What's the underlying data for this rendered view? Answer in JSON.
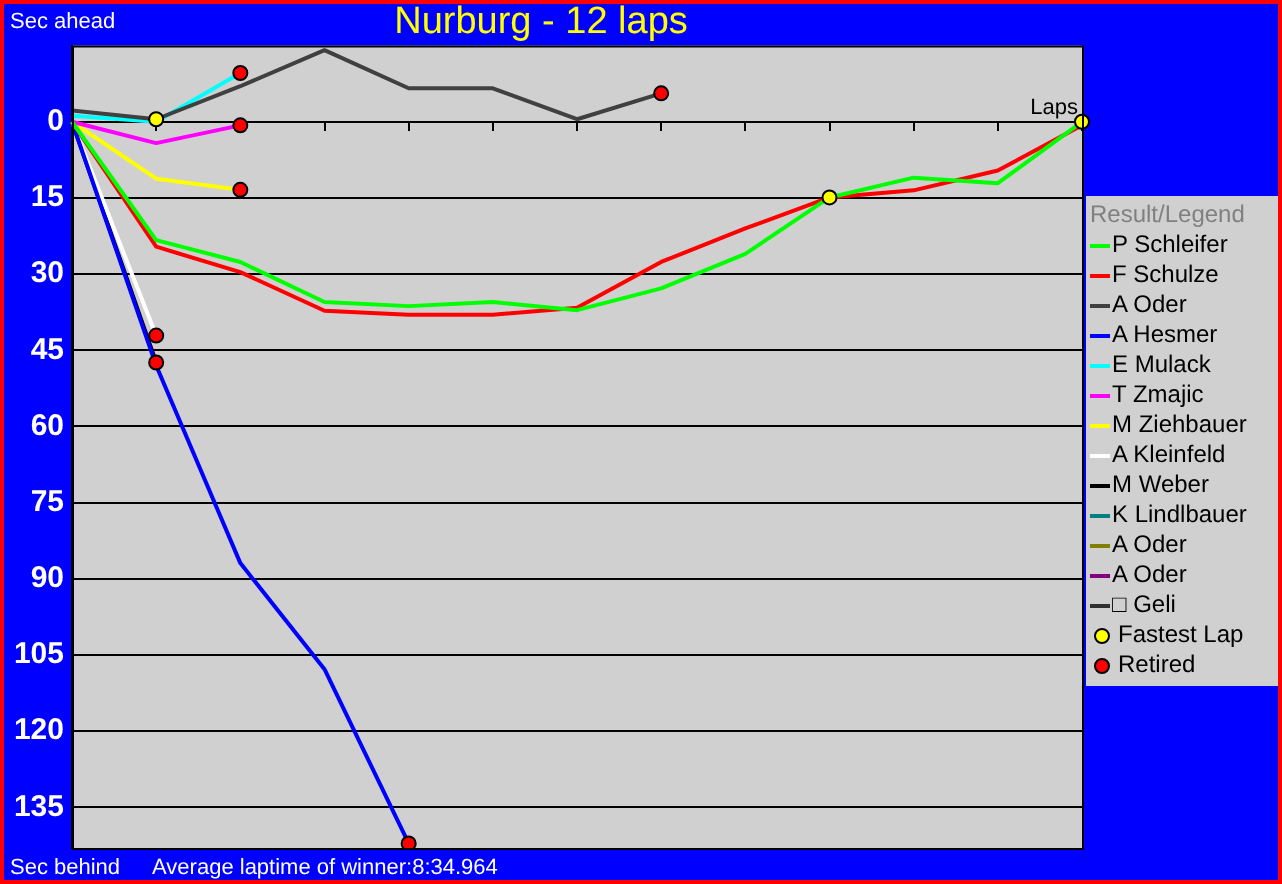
{
  "chart_data": {
    "type": "line",
    "title": "Nurburg - 12 laps",
    "xlabel": "Laps",
    "ylabel": "Sec ahead",
    "legend_title": "Result/Legend",
    "annotations": [
      "Sec behind",
      "Average laptime of winner:8:34.964"
    ],
    "categories": [
      null,
      null,
      null,
      null,
      null,
      null,
      null,
      null,
      null,
      null,
      null,
      null,
      null
    ],
    "ylim": [
      143,
      -15
    ],
    "yticks": [
      0,
      15,
      30,
      45,
      60,
      75,
      90,
      105,
      120,
      135
    ],
    "grid": "y",
    "legend": "right",
    "marker": "none",
    "series": [
      {
        "name": "P Schleifer",
        "color": "#00ff00",
        "values": [
          0,
          23.3,
          27.6,
          35.5,
          36.3,
          35.5,
          37.1,
          32.8,
          26,
          14.9,
          11,
          12.1,
          0
        ]
      },
      {
        "name": "F Schulze",
        "color": "#ff0000",
        "values": [
          0,
          24.6,
          29.6,
          37.2,
          38,
          38,
          36.6,
          27.6,
          21,
          14.9,
          13.5,
          9.6,
          0.7
        ]
      },
      {
        "name": "A Oder",
        "color": "#404040",
        "values": [
          -2.2,
          -0.5,
          -7,
          -14.1,
          -6.6,
          -6.6,
          -0.5,
          -5.6,
          null,
          null,
          null,
          null,
          null
        ]
      },
      {
        "name": "A Hesmer",
        "color": "#0000ff",
        "values": [
          0,
          48,
          86.9,
          107.8,
          142.1,
          null,
          null,
          null,
          null,
          null,
          null,
          null,
          null
        ]
      },
      {
        "name": "E Mulack",
        "color": "#00ffff",
        "values": [
          -1.2,
          0,
          -9.6,
          null,
          null,
          null,
          null,
          null,
          null,
          null,
          null,
          null,
          null
        ]
      },
      {
        "name": "T Zmajic",
        "color": "#ff00ff",
        "values": [
          0,
          4.2,
          0.7,
          null,
          null,
          null,
          null,
          null,
          null,
          null,
          null,
          null,
          null
        ]
      },
      {
        "name": "M Ziehbauer",
        "color": "#ffff00",
        "values": [
          0,
          11.2,
          13.4,
          null,
          null,
          null,
          null,
          null,
          null,
          null,
          null,
          null,
          null
        ]
      },
      {
        "name": "A Kleinfeld",
        "color": "#ffffff",
        "values": [
          0,
          42.1,
          null,
          null,
          null,
          null,
          null,
          null,
          null,
          null,
          null,
          null,
          null
        ]
      },
      {
        "name": "M Weber",
        "color": "#000000",
        "values": [
          0,
          47.4,
          null,
          null,
          null,
          null,
          null,
          null,
          null,
          null,
          null,
          null,
          null
        ]
      },
      {
        "name": "K Lindlbauer",
        "color": "#008080",
        "values": [
          null,
          null,
          null,
          null,
          null,
          null,
          null,
          null,
          null,
          null,
          null,
          null,
          null
        ]
      },
      {
        "name": "A Oder",
        "color": "#808000",
        "values": [
          null,
          null,
          null,
          null,
          null,
          null,
          null,
          null,
          null,
          null,
          null,
          null,
          null
        ]
      },
      {
        "name": "A Oder",
        "color": "#800080",
        "values": [
          null,
          null,
          null,
          null,
          null,
          null,
          null,
          null,
          null,
          null,
          null,
          null,
          null
        ]
      },
      {
        "name": "□ Geli",
        "color": "#303030",
        "values": [
          null,
          null,
          null,
          null,
          null,
          null,
          null,
          null,
          null,
          null,
          null,
          null,
          null
        ]
      },
      {
        "name": "Fastest Lap",
        "type": "scatter",
        "marker": "circle",
        "color": "#ffff00",
        "values": [
          null,
          -0.5,
          null,
          null,
          null,
          null,
          null,
          null,
          null,
          14.9,
          null,
          null,
          0
        ]
      },
      {
        "name": "Retired",
        "type": "scatter",
        "marker": "circle",
        "color": "#ff0000",
        "values": [
          null,
          42.1,
          -9.6,
          null,
          142.1,
          null,
          null,
          -5.6,
          null,
          null,
          null,
          null,
          null
        ]
      },
      {
        "type": "scatter",
        "marker": "circle",
        "color": "#ff0000",
        "values": [
          null,
          47.4,
          0.7,
          null,
          null,
          null,
          null,
          null,
          null,
          null,
          null,
          null,
          null
        ]
      },
      {
        "type": "scatter",
        "marker": "circle",
        "color": "#ff0000",
        "values": [
          null,
          null,
          13.4,
          null,
          null,
          null,
          null,
          null,
          null,
          null,
          null,
          null,
          null
        ]
      }
    ]
  }
}
